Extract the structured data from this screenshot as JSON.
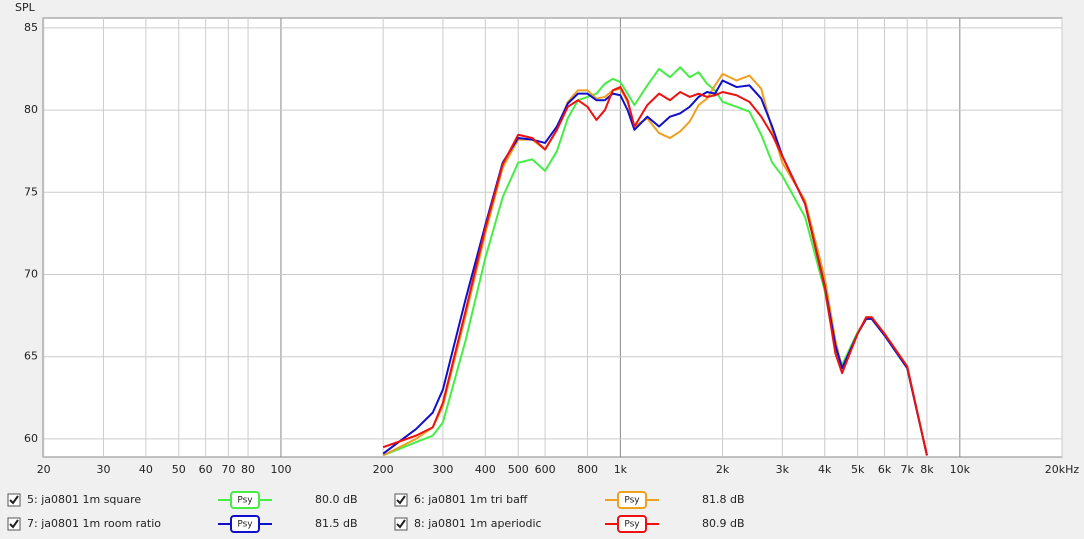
{
  "chart_data": {
    "type": "line",
    "y_label": "SPL",
    "xlim": [
      20,
      20000
    ],
    "ylim": [
      58.9,
      85.6
    ],
    "log_x": true,
    "grid": true,
    "xticks": [
      20,
      30,
      40,
      50,
      60,
      70,
      80,
      100,
      200,
      300,
      400,
      500,
      600,
      800,
      {
        "value": 1000,
        "label": "1k"
      },
      {
        "value": 2000,
        "label": "2k"
      },
      {
        "value": 3000,
        "label": "3k"
      },
      {
        "value": 4000,
        "label": "4k"
      },
      {
        "value": 5000,
        "label": "5k"
      },
      {
        "value": 6000,
        "label": "6k"
      },
      {
        "value": 7000,
        "label": "7k"
      },
      {
        "value": 8000,
        "label": "8k"
      },
      {
        "value": 10000,
        "label": "10k"
      },
      {
        "value": 20000,
        "label": "20kHz"
      }
    ],
    "yticks": [
      60,
      65,
      70,
      75,
      80,
      85
    ],
    "x": [
      200,
      250,
      280,
      300,
      350,
      400,
      450,
      500,
      550,
      600,
      650,
      700,
      750,
      800,
      850,
      900,
      950,
      1000,
      1050,
      1100,
      1200,
      1300,
      1400,
      1500,
      1600,
      1700,
      1800,
      1900,
      2000,
      2200,
      2400,
      2600,
      2800,
      3000,
      3500,
      4000,
      4300,
      4500,
      5000,
      5300,
      5500,
      6000,
      7000,
      8000
    ],
    "series": [
      {
        "name": "5: ja0801 1m square",
        "color": "#44ee44",
        "smoothing": "Psy",
        "level": "80.0 dB",
        "values": [
          59.0,
          59.8,
          60.2,
          61.0,
          66.0,
          71.0,
          74.7,
          76.8,
          77.0,
          76.3,
          77.5,
          79.5,
          80.6,
          80.8,
          81.0,
          81.6,
          81.9,
          81.7,
          81.0,
          80.3,
          81.5,
          82.5,
          82.0,
          82.6,
          82.0,
          82.3,
          81.6,
          81.2,
          80.5,
          80.2,
          79.9,
          78.5,
          76.8,
          76.0,
          73.5,
          69.0,
          65.5,
          64.5,
          66.5,
          67.3,
          67.3,
          66.3,
          64.3,
          59.0
        ]
      },
      {
        "name": "6: ja0801 1m tri baff",
        "color": "#f0a020",
        "smoothing": "Psy",
        "level": "81.8 dB",
        "values": [
          59.0,
          60.0,
          60.7,
          62.0,
          67.5,
          72.5,
          76.5,
          78.2,
          78.2,
          77.6,
          78.8,
          80.5,
          81.2,
          81.2,
          80.7,
          80.8,
          81.2,
          81.3,
          80.5,
          79.0,
          79.5,
          78.6,
          78.3,
          78.7,
          79.3,
          80.3,
          80.7,
          81.5,
          82.2,
          81.8,
          82.1,
          81.3,
          78.8,
          76.8,
          74.5,
          69.8,
          66.0,
          64.3,
          66.4,
          67.4,
          67.4,
          66.4,
          64.4,
          59.0
        ]
      },
      {
        "name": "7: ja0801 1m room ratio",
        "color": "#1010cc",
        "smoothing": "Psy",
        "level": "81.5 dB",
        "values": [
          59.1,
          60.6,
          61.6,
          63.0,
          68.5,
          73.0,
          76.8,
          78.3,
          78.2,
          78.0,
          79.0,
          80.4,
          81.0,
          81.0,
          80.6,
          80.6,
          81.0,
          80.9,
          80.0,
          78.8,
          79.6,
          79.0,
          79.6,
          79.8,
          80.2,
          80.8,
          81.1,
          81.0,
          81.8,
          81.4,
          81.5,
          80.7,
          79.0,
          77.2,
          74.3,
          69.3,
          65.7,
          64.3,
          66.4,
          67.3,
          67.3,
          66.3,
          64.3,
          59.0
        ]
      },
      {
        "name": "8: ja0801 1m aperiodic",
        "color": "#ee1111",
        "smoothing": "Psy",
        "level": "80.9 dB",
        "values": [
          59.5,
          60.2,
          60.7,
          62.2,
          67.8,
          72.8,
          76.7,
          78.5,
          78.3,
          77.6,
          78.8,
          80.2,
          80.6,
          80.2,
          79.4,
          80.0,
          81.2,
          81.4,
          80.6,
          79.0,
          80.3,
          81.0,
          80.6,
          81.1,
          80.8,
          81.0,
          80.8,
          80.9,
          81.1,
          80.9,
          80.5,
          79.6,
          78.5,
          77.2,
          74.3,
          69.2,
          65.2,
          64.0,
          66.4,
          67.4,
          67.4,
          66.4,
          64.4,
          59.0
        ]
      }
    ]
  }
}
